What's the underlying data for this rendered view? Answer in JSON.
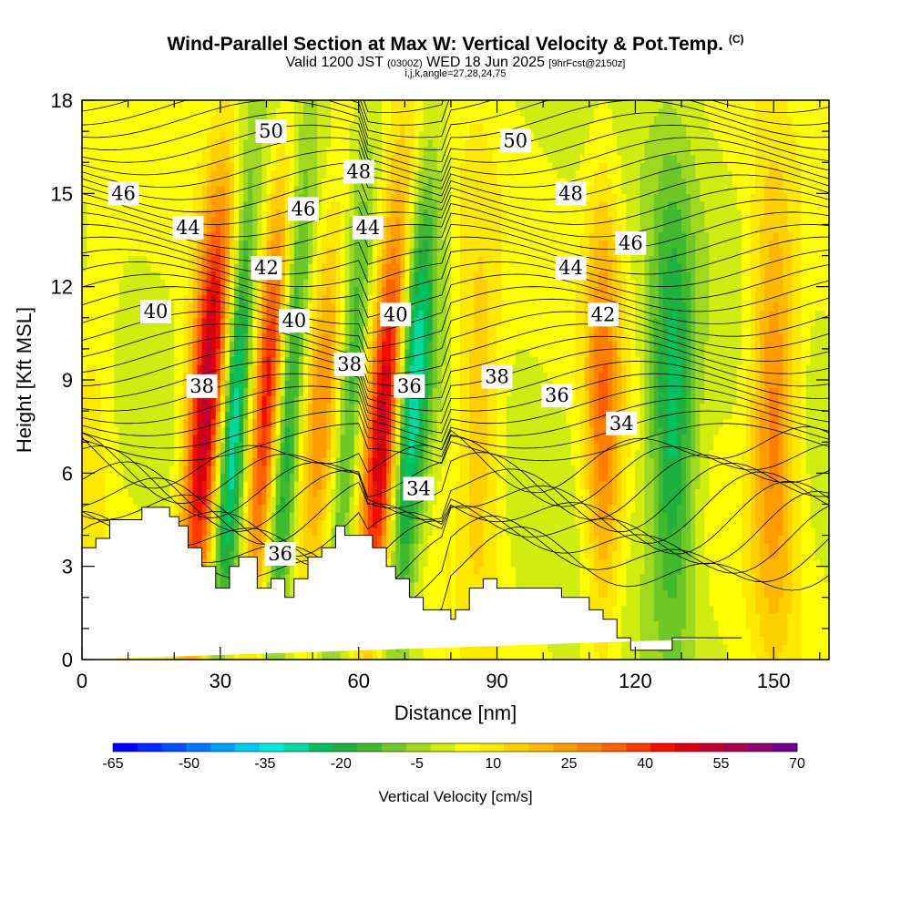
{
  "header": {
    "title": "Wind-Parallel Section at Max W: Vertical Velocity & Pot.Temp.",
    "title_mark": "(C)",
    "valid_main": "Valid 1200 JST",
    "valid_zulu": "(0300Z)",
    "valid_date": "WED 18 Jun 2025",
    "forecast": "[9hrFcst@2150z]",
    "indices": "i,j,k,angle=27,28,24,75"
  },
  "chart_data": {
    "type": "heatmap",
    "title": "Wind-Parallel Section at Max W: Vertical Velocity & Pot.Temp.",
    "xlabel": "Distance [nm]",
    "ylabel": "Height [Kft MSL]",
    "xlim": [
      0,
      162
    ],
    "ylim": [
      0,
      18
    ],
    "x_ticks": [
      0,
      30,
      60,
      90,
      120,
      150
    ],
    "y_ticks": [
      0,
      3,
      6,
      9,
      12,
      15,
      18
    ],
    "colorbar": {
      "title": "Vertical Velocity [cm/s]",
      "range": [
        -65,
        70
      ],
      "tick_labels": [
        "-65",
        "-50",
        "-35",
        "-20",
        "-5",
        "10",
        "25",
        "40",
        "55",
        "70"
      ],
      "tick_values": [
        -65,
        -50,
        -35,
        -20,
        -5,
        10,
        25,
        40,
        55,
        70
      ],
      "colors": [
        "#0000ff",
        "#0028ff",
        "#0050ff",
        "#0078ff",
        "#00a0ff",
        "#00c8f0",
        "#00e8e0",
        "#00d8a0",
        "#00c060",
        "#20b040",
        "#40b830",
        "#70c828",
        "#a0d820",
        "#d0ec10",
        "#ffff00",
        "#ffe800",
        "#ffd000",
        "#ffb800",
        "#ff9c00",
        "#ff8000",
        "#ff6000",
        "#ff3c00",
        "#f01000",
        "#d80010",
        "#c00030",
        "#a80050",
        "#900070",
        "#700090"
      ]
    },
    "updraft_bands": [
      {
        "x": 1,
        "w": 5,
        "peak": 8
      },
      {
        "x": 26,
        "w": 4,
        "peak": 55
      },
      {
        "x": 32,
        "w": 3,
        "peak": -35
      },
      {
        "x": 39,
        "w": 3,
        "peak": 40
      },
      {
        "x": 44,
        "w": 3,
        "peak": -25
      },
      {
        "x": 51,
        "w": 4,
        "peak": 22
      },
      {
        "x": 57,
        "w": 3,
        "peak": -20
      },
      {
        "x": 65,
        "w": 4,
        "peak": 55
      },
      {
        "x": 70,
        "w": 4,
        "peak": -40
      },
      {
        "x": 86,
        "w": 5,
        "peak": 15
      },
      {
        "x": 113,
        "w": 4,
        "peak": 28
      },
      {
        "x": 128,
        "w": 5,
        "peak": -28
      },
      {
        "x": 150,
        "w": 5,
        "peak": 28
      }
    ],
    "terrain": {
      "x": [
        0,
        3,
        3,
        6,
        6,
        13,
        13,
        19,
        19,
        21,
        21,
        23,
        23,
        26,
        26,
        29,
        29,
        32,
        32,
        34,
        34,
        38,
        38,
        41,
        41,
        44,
        44,
        46,
        46,
        49,
        49,
        52,
        52,
        55,
        55,
        57,
        57,
        63,
        63,
        66,
        66,
        68,
        68,
        71,
        71,
        74,
        74,
        80,
        80,
        81,
        81,
        84,
        84,
        87,
        87,
        90,
        90,
        104,
        104,
        110,
        110,
        113,
        113,
        116,
        116,
        119,
        119,
        123,
        123,
        128,
        128,
        138,
        138,
        143,
        143,
        162
      ],
      "y": [
        3.6,
        3.6,
        3.9,
        3.9,
        4.5,
        4.5,
        4.9,
        4.9,
        4.6,
        4.6,
        4.3,
        4.3,
        3.6,
        3.6,
        3.0,
        3.0,
        2.3,
        2.3,
        3.0,
        3.0,
        3.3,
        3.3,
        2.3,
        2.3,
        2.6,
        2.6,
        2.0,
        2.0,
        2.6,
        2.6,
        3.3,
        3.3,
        3.6,
        3.6,
        4.3,
        4.3,
        4.0,
        4.0,
        3.6,
        3.6,
        3.0,
        3.0,
        2.6,
        2.6,
        2.0,
        2.0,
        1.6,
        1.6,
        1.3,
        1.3,
        1.6,
        1.6,
        2.3,
        2.3,
        2.6,
        2.6,
        2.3,
        2.3,
        2.0,
        2.0,
        1.6,
        1.6,
        1.3,
        1.3,
        0.7,
        0.7,
        0.3,
        0.3,
        0.3,
        0.3,
        0.7,
        0.7,
        0.7,
        0.7
      ]
    },
    "theta_labels": [
      {
        "text": "50",
        "x": 41,
        "y": 17.0
      },
      {
        "text": "48",
        "x": 60,
        "y": 15.7
      },
      {
        "text": "50",
        "x": 94,
        "y": 16.7
      },
      {
        "text": "46",
        "x": 9,
        "y": 15.0
      },
      {
        "text": "46",
        "x": 48,
        "y": 14.5
      },
      {
        "text": "48",
        "x": 106,
        "y": 15.0
      },
      {
        "text": "44",
        "x": 23,
        "y": 13.9
      },
      {
        "text": "44",
        "x": 62,
        "y": 13.9
      },
      {
        "text": "46",
        "x": 119,
        "y": 13.4
      },
      {
        "text": "42",
        "x": 40,
        "y": 12.6
      },
      {
        "text": "44",
        "x": 106,
        "y": 12.6
      },
      {
        "text": "40",
        "x": 16,
        "y": 11.2
      },
      {
        "text": "40",
        "x": 46,
        "y": 10.9
      },
      {
        "text": "40",
        "x": 68,
        "y": 11.1
      },
      {
        "text": "42",
        "x": 113,
        "y": 11.1
      },
      {
        "text": "38",
        "x": 58,
        "y": 9.5
      },
      {
        "text": "38",
        "x": 90,
        "y": 9.1
      },
      {
        "text": "36",
        "x": 71,
        "y": 8.8
      },
      {
        "text": "36",
        "x": 103,
        "y": 8.5
      },
      {
        "text": "34",
        "x": 117,
        "y": 7.6
      },
      {
        "text": "38",
        "x": 26,
        "y": 8.8
      },
      {
        "text": "34",
        "x": 73,
        "y": 5.5
      },
      {
        "text": "36",
        "x": 43,
        "y": 3.4
      }
    ]
  }
}
